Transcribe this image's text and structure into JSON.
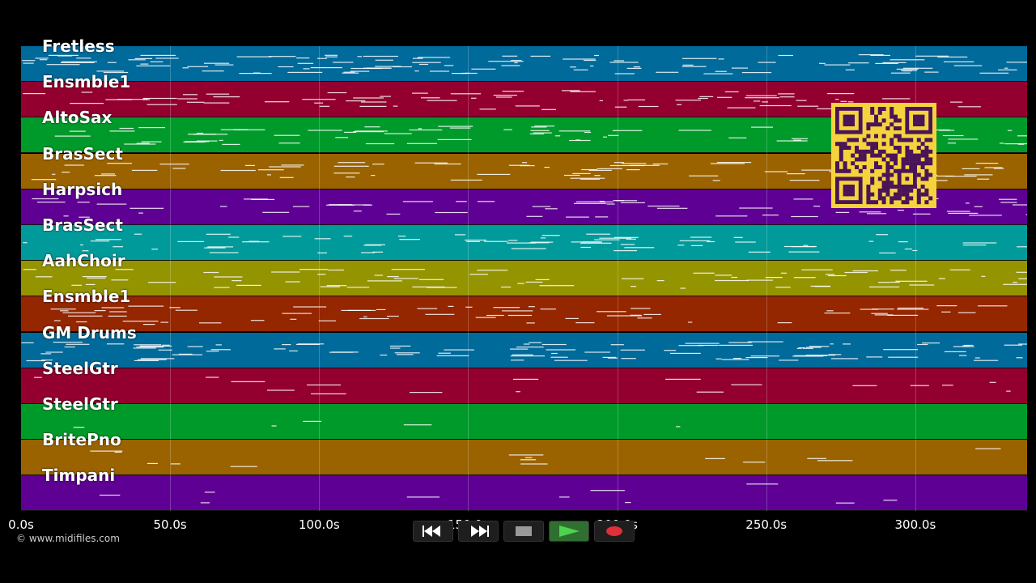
{
  "tracks": [
    {
      "name": "Fretless",
      "color": "#006a9a"
    },
    {
      "name": "Ensmble1",
      "color": "#93002f"
    },
    {
      "name": "AltoSax",
      "color": "#009a2b"
    },
    {
      "name": "BrasSect",
      "color": "#9a6300"
    },
    {
      "name": "Harpsich",
      "color": "#5e0094"
    },
    {
      "name": "BrasSect",
      "color": "#009a9a"
    },
    {
      "name": "AahChoir",
      "color": "#949400"
    },
    {
      "name": "Ensmble1",
      "color": "#942600"
    },
    {
      "name": "GM Drums",
      "color": "#006a9a"
    },
    {
      "name": "SteelGtr",
      "color": "#93002f"
    },
    {
      "name": "SteelGtr",
      "color": "#009a2b"
    },
    {
      "name": "BritePno",
      "color": "#9a6300"
    },
    {
      "name": "Timpani",
      "color": "#5e0094"
    }
  ],
  "timeline": {
    "ticks": [
      "0.0s",
      "50.0s",
      "100.0s",
      "150.0s",
      "200.0s",
      "250.0s",
      "300.0s"
    ],
    "tick_values": [
      0,
      50,
      100,
      150,
      200,
      250,
      300
    ],
    "max_seconds": 337.5
  },
  "copyright": "© www.midifiles.com",
  "transport": {
    "rewind_icon": "rewind-icon",
    "fast_forward_icon": "fast-forward-icon",
    "stop_icon": "stop-icon",
    "play_icon": "play-icon",
    "record_icon": "record-icon"
  },
  "qr_icon": "qr-code-icon"
}
